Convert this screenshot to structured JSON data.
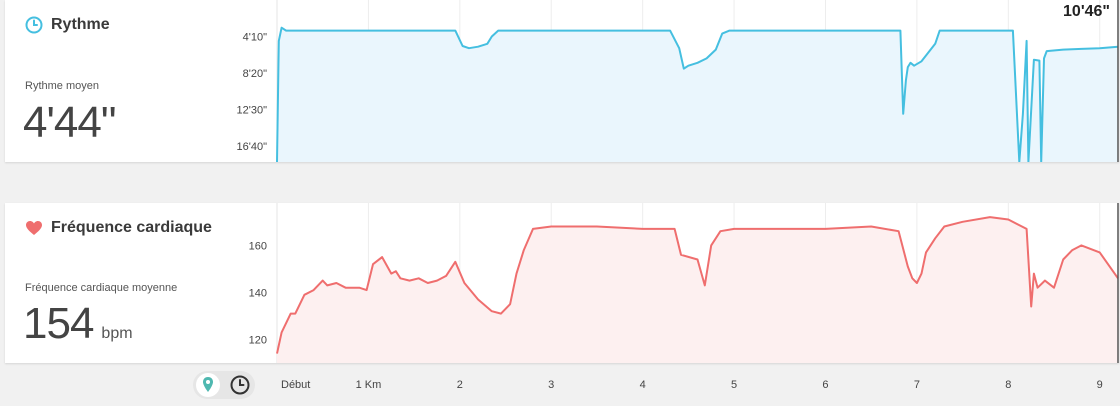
{
  "pace": {
    "title": "Rythme",
    "avg_label": "Rythme moyen",
    "avg_value": "4'44\"",
    "readout": "10'46\"",
    "icon": "clock-icon",
    "color": "#45bfe0",
    "fill": "#eaf6fd"
  },
  "heart": {
    "title": "Fréquence cardiaque",
    "avg_label": "Fréquence cardiaque moyenne",
    "avg_value": "154",
    "unit": "bpm",
    "icon": "heart-icon",
    "color": "#ef6e6e",
    "fill": "#fdf0f0"
  },
  "view_toggle": {
    "options": [
      "map-pin-icon",
      "clock-icon"
    ],
    "selected": "map-pin-icon",
    "accent": "#4fb8b0"
  },
  "chart_data": [
    {
      "type": "area",
      "title": "Rythme",
      "x_ticks": [
        "Début",
        "1 Km",
        "2",
        "3",
        "4",
        "5",
        "6",
        "7",
        "8",
        "9"
      ],
      "x_tick_values": [
        0,
        1,
        2,
        3,
        4,
        5,
        6,
        7,
        8,
        9
      ],
      "y_tick_labels": [
        "4'10\"",
        "8'20\"",
        "12'30\"",
        "16'40\""
      ],
      "y_tick_values_sec": [
        250,
        500,
        750,
        1000
      ],
      "y_inverted": true,
      "xlim": [
        0,
        9.2
      ],
      "ylim_sec": [
        1110,
        0
      ],
      "x": [
        0,
        0.02,
        0.05,
        0.1,
        0.2,
        0.4,
        0.8,
        1.2,
        1.6,
        1.95,
        2.03,
        2.1,
        2.2,
        2.3,
        2.35,
        2.42,
        2.5,
        3.0,
        3.5,
        3.9,
        4.3,
        4.4,
        4.45,
        4.5,
        4.6,
        4.7,
        4.8,
        4.87,
        4.95,
        5.5,
        6.0,
        6.5,
        6.82,
        6.85,
        6.88,
        6.9,
        6.93,
        6.97,
        7.05,
        7.2,
        7.25,
        7.3,
        7.4,
        7.8,
        8.05,
        8.12,
        8.16,
        8.2,
        8.22,
        8.28,
        8.34,
        8.36,
        8.39,
        8.42,
        8.6,
        8.8,
        9.0,
        9.2
      ],
      "y_sec": [
        1110,
        280,
        190,
        210,
        210,
        210,
        210,
        210,
        210,
        210,
        315,
        330,
        320,
        300,
        250,
        210,
        210,
        210,
        210,
        210,
        210,
        330,
        470,
        450,
        430,
        400,
        340,
        230,
        210,
        210,
        210,
        210,
        210,
        780,
        550,
        460,
        430,
        450,
        420,
        300,
        210,
        210,
        210,
        210,
        210,
        1110,
        780,
        280,
        1110,
        410,
        415,
        1110,
        400,
        350,
        340,
        335,
        330,
        320
      ]
    },
    {
      "type": "area",
      "title": "Fréquence cardiaque",
      "x_ticks": [
        "Début",
        "1 Km",
        "2",
        "3",
        "4",
        "5",
        "6",
        "7",
        "8",
        "9"
      ],
      "x_tick_values": [
        0,
        1,
        2,
        3,
        4,
        5,
        6,
        7,
        8,
        9
      ],
      "y_ticks": [
        120,
        140,
        160
      ],
      "xlim": [
        0,
        9.2
      ],
      "ylim": [
        110,
        178
      ],
      "x": [
        0,
        0.05,
        0.15,
        0.2,
        0.3,
        0.4,
        0.5,
        0.55,
        0.65,
        0.75,
        0.9,
        0.98,
        1.05,
        1.15,
        1.25,
        1.3,
        1.35,
        1.45,
        1.55,
        1.65,
        1.75,
        1.85,
        1.95,
        2.05,
        2.2,
        2.35,
        2.45,
        2.55,
        2.62,
        2.7,
        2.8,
        3.0,
        3.5,
        4.0,
        4.35,
        4.42,
        4.6,
        4.68,
        4.75,
        4.85,
        5.0,
        5.5,
        6.0,
        6.5,
        6.8,
        6.9,
        6.95,
        7.0,
        7.05,
        7.1,
        7.2,
        7.3,
        7.5,
        7.8,
        8.0,
        8.2,
        8.25,
        8.28,
        8.32,
        8.4,
        8.5,
        8.6,
        8.7,
        8.8,
        9.0,
        9.2
      ],
      "y": [
        114,
        123,
        131,
        131,
        139,
        141,
        145,
        143,
        144,
        142,
        142,
        141,
        152,
        155,
        148,
        149,
        146,
        145,
        146,
        144,
        145,
        147,
        153,
        144,
        137,
        132,
        131,
        135,
        148,
        158,
        167,
        168,
        168,
        167,
        167,
        156,
        154,
        143,
        160,
        166,
        167,
        167,
        167,
        168,
        166,
        151,
        146,
        144,
        148,
        157,
        163,
        168,
        170,
        172,
        171,
        167,
        134,
        148,
        142,
        145,
        142,
        154,
        158,
        160,
        157,
        146
      ],
      "avg": 154
    }
  ]
}
